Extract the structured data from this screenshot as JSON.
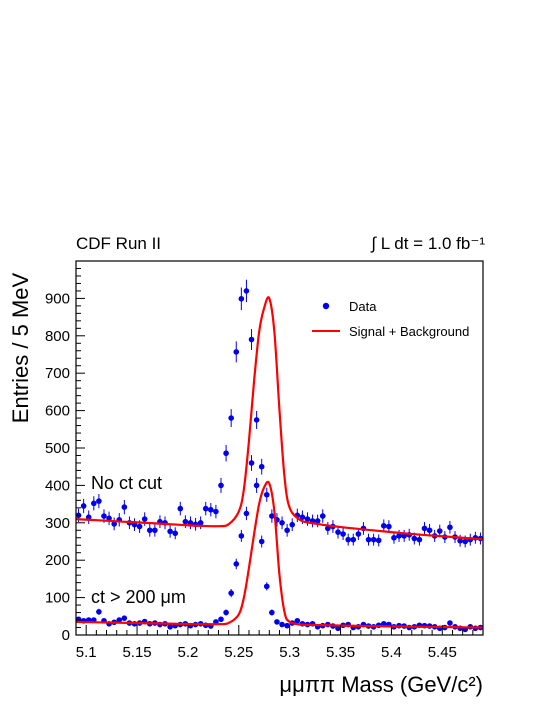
{
  "chart_data": {
    "type": "scatter",
    "header_left": "CDF Run II",
    "header_right": "∫ L dt = 1.0 fb⁻¹",
    "xlabel": "μμππ Mass (GeV/c²)",
    "ylabel": "Entries / 5 MeV",
    "xlim": [
      5.09,
      5.49
    ],
    "ylim": [
      0,
      1000
    ],
    "x_ticks": [
      5.1,
      5.15,
      5.2,
      5.25,
      5.3,
      5.35,
      5.4,
      5.45
    ],
    "x_tick_labels": [
      "5.1",
      "5.15",
      "5.2",
      "5.25",
      "5.3",
      "5.35",
      "5.4",
      "5.45"
    ],
    "y_ticks": [
      0,
      100,
      200,
      300,
      400,
      500,
      600,
      700,
      800,
      900
    ],
    "y_tick_labels": [
      "0",
      "100",
      "200",
      "300",
      "400",
      "500",
      "600",
      "700",
      "800",
      "900"
    ],
    "legend": {
      "placement": "top-right",
      "entries": [
        {
          "label": "Data",
          "marker": "dot",
          "color": "#0000ee"
        },
        {
          "label": "Signal + Background",
          "marker": "line",
          "color": "#ff0000"
        }
      ]
    },
    "annotations": [
      "No ct cut",
      "ct > 200 μm"
    ],
    "data_color": "#0000ee",
    "fit_color": "#ff0000",
    "series": [
      {
        "name": "No ct cut",
        "kind": "data",
        "x": [
          5.0925,
          5.0975,
          5.1025,
          5.1075,
          5.1125,
          5.1175,
          5.1225,
          5.1275,
          5.1325,
          5.1375,
          5.1425,
          5.1475,
          5.1525,
          5.1575,
          5.1625,
          5.1675,
          5.1725,
          5.1775,
          5.1825,
          5.1875,
          5.1925,
          5.1975,
          5.2025,
          5.2075,
          5.2125,
          5.2175,
          5.2225,
          5.2275,
          5.2325,
          5.2375,
          5.2425,
          5.2475,
          5.2525,
          5.2575,
          5.2625,
          5.2675,
          5.2725,
          5.2775,
          5.2825,
          5.2875,
          5.2925,
          5.2975,
          5.3025,
          5.3075,
          5.3125,
          5.3175,
          5.3225,
          5.3275,
          5.3325,
          5.3375,
          5.3425,
          5.3475,
          5.3525,
          5.3575,
          5.3625,
          5.3675,
          5.3725,
          5.3775,
          5.3825,
          5.3875,
          5.3925,
          5.3975,
          5.4025,
          5.4075,
          5.4125,
          5.4175,
          5.4225,
          5.4275,
          5.4325,
          5.4375,
          5.4425,
          5.4475,
          5.4525,
          5.4575,
          5.4625,
          5.4675,
          5.4725,
          5.4775,
          5.4825,
          5.4875
        ],
        "y": [
          320,
          345,
          315,
          352,
          358,
          318,
          312,
          297,
          308,
          342,
          300,
          295,
          290,
          310,
          280,
          280,
          303,
          300,
          277,
          272,
          338,
          303,
          300,
          296,
          300,
          338,
          335,
          330,
          400,
          486,
          580,
          757,
          899,
          920,
          790,
          575,
          450,
          375,
          318,
          308,
          300,
          280,
          295,
          320,
          315,
          310,
          305,
          305,
          318,
          285,
          290,
          275,
          270,
          255,
          255,
          270,
          285,
          255,
          255,
          253,
          292,
          290,
          260,
          265,
          265,
          268,
          258,
          255,
          285,
          280,
          265,
          278,
          262,
          288,
          262,
          252,
          250,
          255,
          260,
          258
        ],
        "err": [
          18,
          19,
          18,
          19,
          19,
          18,
          18,
          17,
          18,
          19,
          17,
          17,
          17,
          18,
          17,
          17,
          17,
          17,
          17,
          16,
          18,
          17,
          17,
          17,
          17,
          18,
          18,
          18,
          20,
          22,
          24,
          28,
          30,
          30,
          28,
          24,
          21,
          19,
          18,
          18,
          17,
          17,
          17,
          18,
          18,
          18,
          17,
          17,
          18,
          17,
          17,
          17,
          16,
          16,
          16,
          16,
          17,
          16,
          16,
          16,
          17,
          17,
          16,
          16,
          16,
          16,
          16,
          16,
          17,
          17,
          16,
          17,
          16,
          17,
          16,
          16,
          16,
          16,
          16,
          16
        ]
      },
      {
        "name": "ct > 200 μm",
        "kind": "data",
        "x": [
          5.0925,
          5.0975,
          5.1025,
          5.1075,
          5.1125,
          5.1175,
          5.1225,
          5.1275,
          5.1325,
          5.1375,
          5.1425,
          5.1475,
          5.1525,
          5.1575,
          5.1625,
          5.1675,
          5.1725,
          5.1775,
          5.1825,
          5.1875,
          5.1925,
          5.1975,
          5.2025,
          5.2075,
          5.2125,
          5.2175,
          5.2225,
          5.2275,
          5.2325,
          5.2375,
          5.2425,
          5.2475,
          5.2525,
          5.2575,
          5.2625,
          5.2675,
          5.2725,
          5.2775,
          5.2825,
          5.2875,
          5.2925,
          5.2975,
          5.3025,
          5.3075,
          5.3125,
          5.3175,
          5.3225,
          5.3275,
          5.3325,
          5.3375,
          5.3425,
          5.3475,
          5.3525,
          5.3575,
          5.3625,
          5.3675,
          5.3725,
          5.3775,
          5.3825,
          5.3875,
          5.3925,
          5.3975,
          5.4025,
          5.4075,
          5.4125,
          5.4175,
          5.4225,
          5.4275,
          5.4325,
          5.4375,
          5.4425,
          5.4475,
          5.4525,
          5.4575,
          5.4625,
          5.4675,
          5.4725,
          5.4775,
          5.4825,
          5.4875
        ],
        "y": [
          42,
          38,
          40,
          40,
          62,
          38,
          30,
          34,
          40,
          45,
          32,
          30,
          32,
          36,
          30,
          32,
          28,
          30,
          22,
          25,
          28,
          30,
          25,
          28,
          30,
          26,
          24,
          35,
          42,
          60,
          112,
          190,
          265,
          325,
          460,
          400,
          250,
          130,
          60,
          35,
          28,
          25,
          32,
          38,
          30,
          28,
          30,
          22,
          25,
          28,
          24,
          18,
          26,
          28,
          20,
          22,
          28,
          24,
          22,
          26,
          30,
          28,
          22,
          25,
          24,
          20,
          22,
          26,
          25,
          24,
          22,
          18,
          20,
          32,
          22,
          18,
          15,
          22,
          18,
          20
        ],
        "err": [
          7,
          6,
          6,
          6,
          8,
          6,
          6,
          6,
          6,
          7,
          6,
          6,
          6,
          6,
          6,
          6,
          5,
          6,
          5,
          5,
          5,
          6,
          5,
          5,
          6,
          5,
          5,
          6,
          7,
          8,
          11,
          14,
          16,
          18,
          21,
          20,
          16,
          11,
          8,
          6,
          5,
          5,
          6,
          6,
          6,
          5,
          6,
          5,
          5,
          5,
          5,
          4,
          5,
          5,
          5,
          5,
          5,
          5,
          5,
          5,
          6,
          5,
          5,
          5,
          5,
          5,
          5,
          5,
          5,
          5,
          5,
          4,
          5,
          6,
          5,
          4,
          4,
          5,
          4,
          5
        ]
      },
      {
        "name": "No ct cut fit",
        "kind": "fit",
        "x": [
          5.09,
          5.11,
          5.13,
          5.15,
          5.17,
          5.19,
          5.21,
          5.23,
          5.24,
          5.25,
          5.255,
          5.26,
          5.265,
          5.27,
          5.275,
          5.28,
          5.285,
          5.29,
          5.295,
          5.3,
          5.31,
          5.32,
          5.34,
          5.37,
          5.4,
          5.43,
          5.46,
          5.49
        ],
        "y": [
          310,
          307,
          304,
          301,
          298,
          295,
          292,
          291,
          296,
          330,
          390,
          520,
          680,
          810,
          875,
          900,
          810,
          600,
          420,
          340,
          308,
          300,
          292,
          283,
          275,
          268,
          262,
          256
        ]
      },
      {
        "name": "ct > 200 μm fit",
        "kind": "fit",
        "x": [
          5.09,
          5.11,
          5.13,
          5.15,
          5.17,
          5.19,
          5.21,
          5.23,
          5.24,
          5.25,
          5.255,
          5.26,
          5.265,
          5.27,
          5.275,
          5.28,
          5.285,
          5.29,
          5.295,
          5.3,
          5.31,
          5.32,
          5.34,
          5.37,
          5.4,
          5.43,
          5.46,
          5.49
        ],
        "y": [
          35,
          34,
          33,
          32,
          31,
          30,
          29,
          29,
          32,
          55,
          100,
          180,
          270,
          350,
          395,
          405,
          330,
          160,
          60,
          35,
          28,
          27,
          26,
          24,
          23,
          22,
          21,
          20
        ]
      }
    ]
  }
}
